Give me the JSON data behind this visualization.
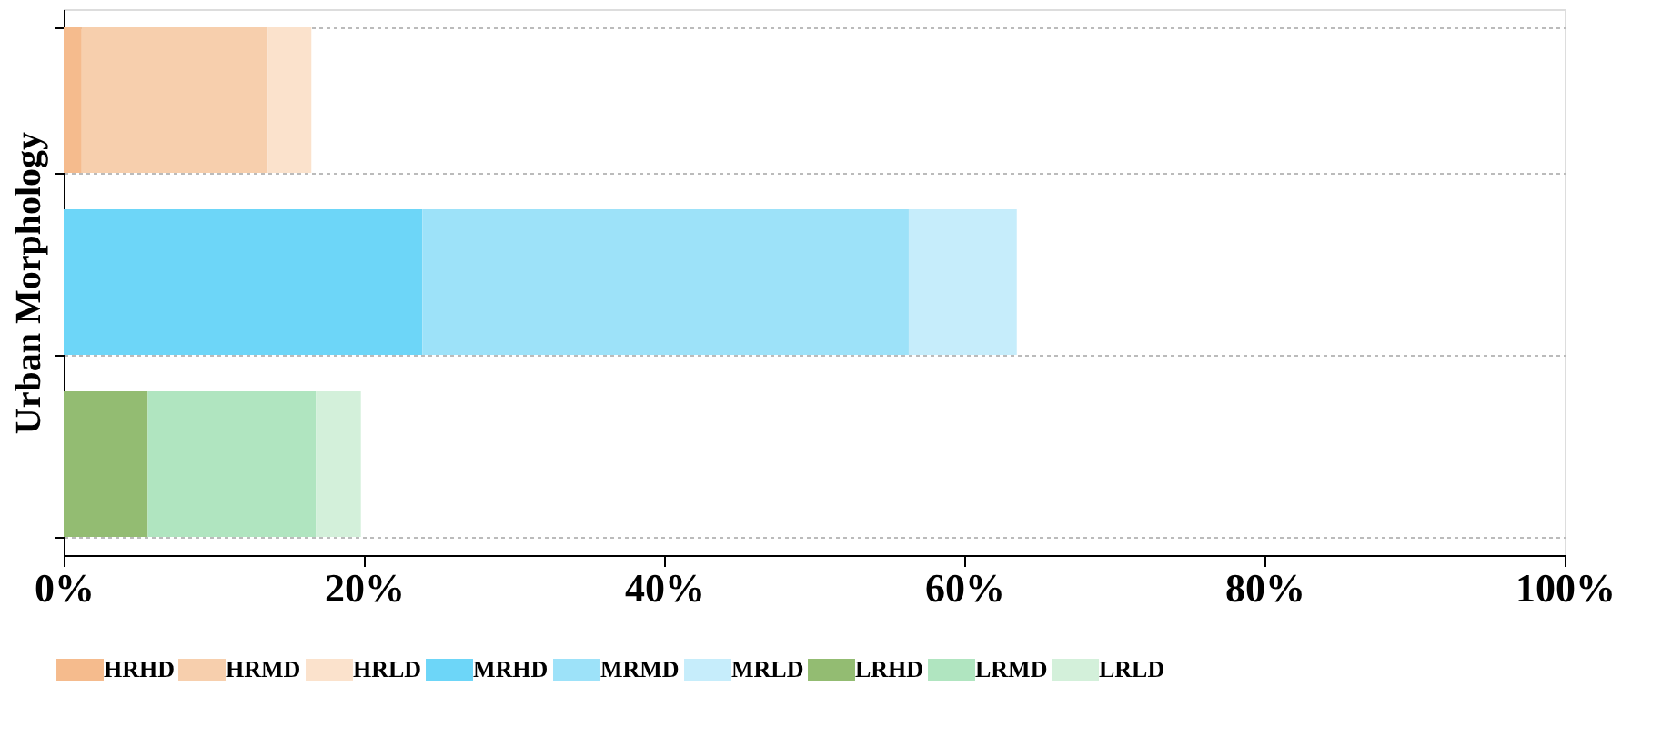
{
  "chart_data": {
    "type": "bar",
    "orientation": "horizontal",
    "stacked": true,
    "categories": [
      null,
      null,
      null
    ],
    "ylabel": "Urban Morphology",
    "series": [
      {
        "name": "HRHD",
        "color": "#f5bb8d",
        "values": [
          1.2,
          null,
          null
        ]
      },
      {
        "name": "HRMD",
        "color": "#f7cfad",
        "values": [
          12.4,
          null,
          null
        ]
      },
      {
        "name": "HRLD",
        "color": "#fbe2cc",
        "values": [
          2.9,
          null,
          null
        ]
      },
      {
        "name": "MRHD",
        "color": "#6dd6f8",
        "values": [
          null,
          23.9,
          null
        ]
      },
      {
        "name": "MRMD",
        "color": "#9de2f9",
        "values": [
          null,
          32.4,
          null
        ]
      },
      {
        "name": "MRLD",
        "color": "#c6edfb",
        "values": [
          null,
          7.2,
          null
        ]
      },
      {
        "name": "LRHD",
        "color": "#93bc72",
        "values": [
          null,
          null,
          5.6
        ]
      },
      {
        "name": "LRMD",
        "color": "#b0e5c0",
        "values": [
          null,
          null,
          11.2
        ]
      },
      {
        "name": "LRLD",
        "color": "#d3f0da",
        "values": [
          null,
          null,
          3.0
        ]
      }
    ],
    "xlim": [
      0,
      100
    ],
    "xticks": [
      {
        "value": 0,
        "label": "0%"
      },
      {
        "value": 20,
        "label": "20%"
      },
      {
        "value": 40,
        "label": "40%"
      },
      {
        "value": 60,
        "label": "60%"
      },
      {
        "value": 80,
        "label": "80%"
      },
      {
        "value": 100,
        "label": "100%"
      }
    ],
    "grid": "y",
    "legend": "bottom",
    "tick_labels": "x"
  }
}
